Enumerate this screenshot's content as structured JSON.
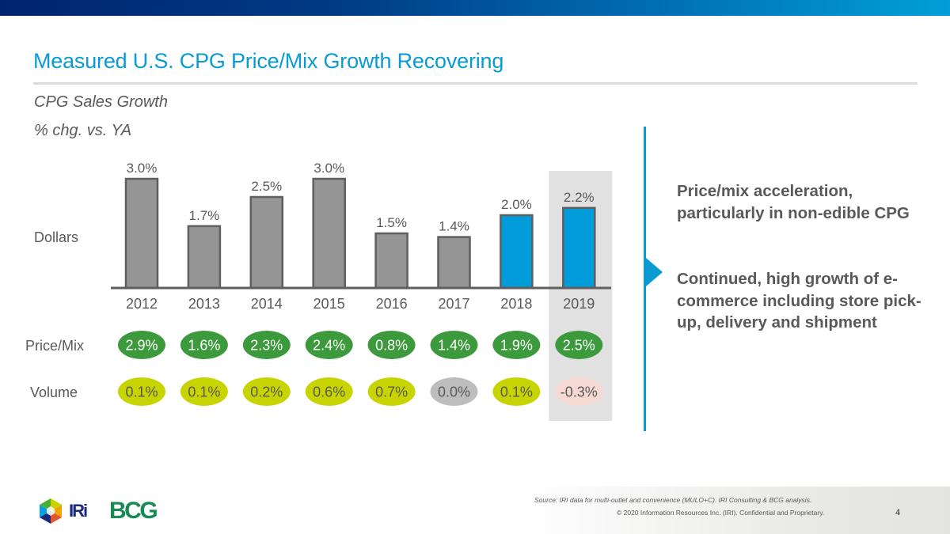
{
  "header": {
    "title": "Measured U.S. CPG Price/Mix Growth Recovering",
    "subtitle_line1": "CPG Sales Growth",
    "subtitle_line2": "% chg. vs. YA"
  },
  "row_labels": {
    "dollars": "Dollars",
    "price_mix": "Price/Mix",
    "volume": "Volume"
  },
  "colors": {
    "title_blue": "#0a9bd4",
    "bar_gray": "#959595",
    "bar_blue": "#009bd9",
    "bar_outline": "#5f5f5f",
    "price_mix_green": "#3c9a3c",
    "volume_lime": "#c8d400",
    "volume_neutral_gray": "#bdbdbd",
    "volume_negative_pink": "#f6d9d2",
    "highlight_bg": "#e1e1e1",
    "text_gray": "#595959"
  },
  "chart_data": {
    "type": "bar",
    "title": "CPG Sales Growth",
    "subtitle": "% chg. vs. YA",
    "xlabel": "",
    "ylabel": "Dollars",
    "ylim": [
      0,
      3.0
    ],
    "grid": false,
    "legend": "none",
    "categories": [
      "2012",
      "2013",
      "2014",
      "2015",
      "2016",
      "2017",
      "2018",
      "2019"
    ],
    "series": [
      {
        "name": "Dollars",
        "values": [
          3.0,
          1.7,
          2.5,
          3.0,
          1.5,
          1.4,
          2.0,
          2.2
        ],
        "labels": [
          "3.0%",
          "1.7%",
          "2.5%",
          "3.0%",
          "1.5%",
          "1.4%",
          "2.0%",
          "2.2%"
        ],
        "highlighted": [
          false,
          false,
          false,
          false,
          false,
          false,
          true,
          true
        ]
      }
    ],
    "price_mix": {
      "name": "Price/Mix",
      "values": [
        2.9,
        1.6,
        2.3,
        2.4,
        0.8,
        1.4,
        1.9,
        2.5
      ],
      "labels": [
        "2.9%",
        "1.6%",
        "2.3%",
        "2.4%",
        "0.8%",
        "1.4%",
        "1.9%",
        "2.5%"
      ]
    },
    "volume": {
      "name": "Volume",
      "values": [
        0.1,
        0.1,
        0.2,
        0.6,
        0.7,
        0.0,
        0.1,
        -0.3
      ],
      "labels": [
        "0.1%",
        "0.1%",
        "0.2%",
        "0.6%",
        "0.7%",
        "0.0%",
        "0.1%",
        "-0.3%"
      ]
    },
    "highlighted_category": "2019"
  },
  "takeaways": [
    "Price/mix acceleration, particularly in non-edible CPG",
    "Continued, high growth of e-commerce including store pick-up, delivery and shipment"
  ],
  "footer": {
    "source": "Source: IRI data for multi-outlet and convenience (MULO+C). IRI Consulting & BCG analysis.",
    "copyright": "© 2020 Information Resources Inc. (IRI). Confidential and Proprietary.",
    "page_number": "4",
    "logo_iri": "IRi",
    "logo_bcg": "BCG"
  }
}
